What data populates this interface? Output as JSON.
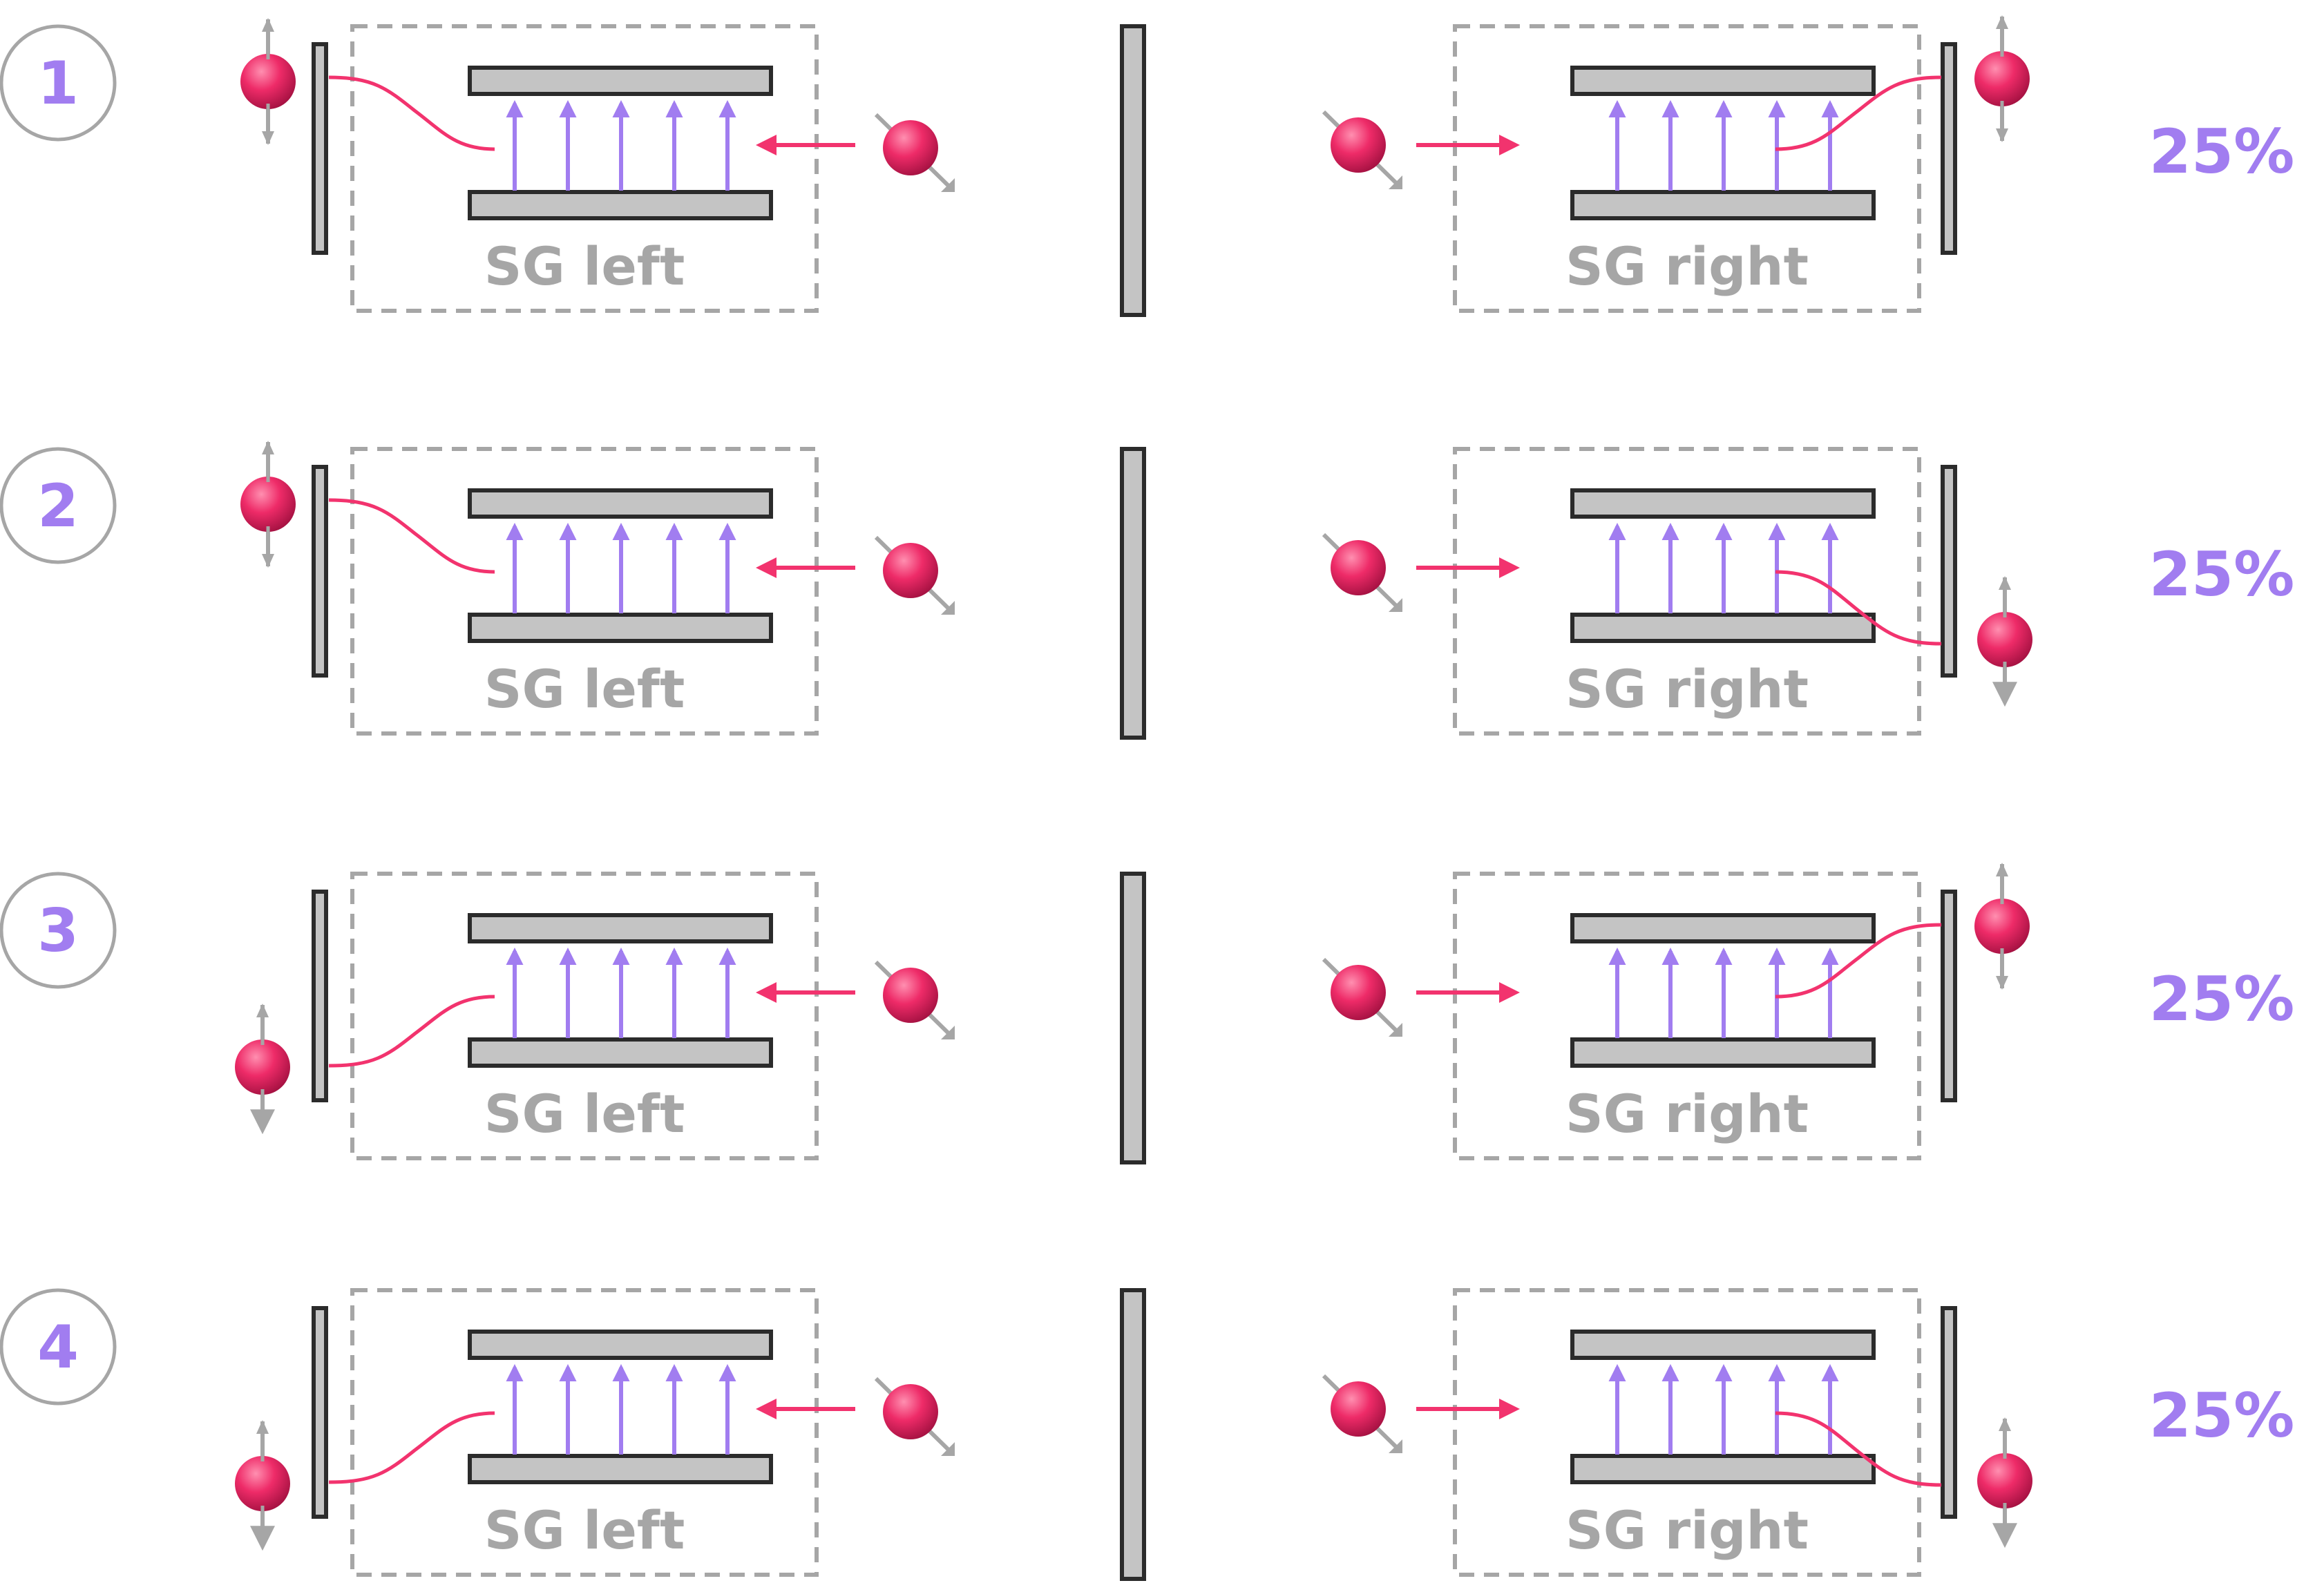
{
  "colors": {
    "accent": "#a17df0",
    "particle": "#ee2b68",
    "trajectory": "#f2336e",
    "plate_fill": "#c4c4c4",
    "plate_stroke": "#2b2b2b",
    "box_stroke": "#a6a6a6",
    "label": "#a6a6a6",
    "spin_arrow": "#a6a6a6",
    "circle_stroke": "#a6a6a6"
  },
  "rows": [
    {
      "number": "1",
      "probability": "25%",
      "left_label": "SG left",
      "right_label": "SG right",
      "left_outcome": "up",
      "right_outcome": "up"
    },
    {
      "number": "2",
      "probability": "25%",
      "left_label": "SG left",
      "right_label": "SG right",
      "left_outcome": "up",
      "right_outcome": "down"
    },
    {
      "number": "3",
      "probability": "25%",
      "left_label": "SG left",
      "right_label": "SG right",
      "left_outcome": "down",
      "right_outcome": "up"
    },
    {
      "number": "4",
      "probability": "25%",
      "left_label": "SG left",
      "right_label": "SG right",
      "left_outcome": "down",
      "right_outcome": "down"
    }
  ]
}
